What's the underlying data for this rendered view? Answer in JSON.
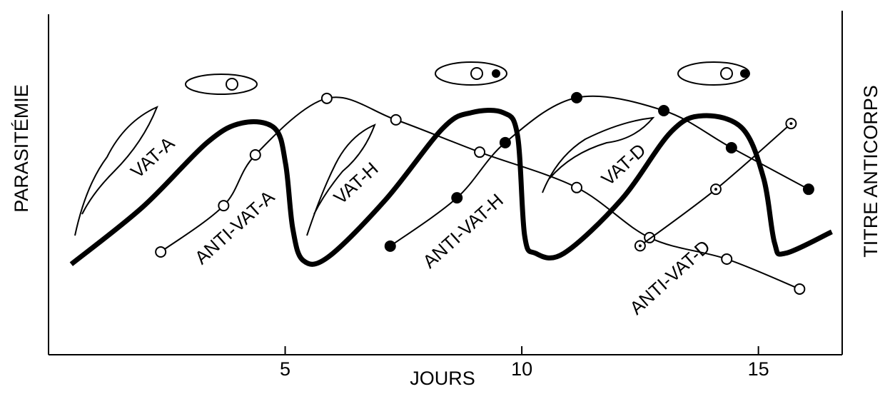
{
  "chart_data": {
    "type": "line",
    "x_label": "JOURS",
    "y_label": "PARASITÉMIE",
    "y2_label": "TITRE ANTICORPS",
    "xlim": [
      0,
      16.8
    ],
    "xticks": [
      5,
      10,
      15
    ],
    "ylim": [
      0,
      10
    ],
    "series": [
      {
        "color": "#000",
        "style": "thick",
        "x": [
          0.48,
          1.99,
          3.35,
          4.1,
          4.78,
          5.01,
          5.16,
          5.38,
          5.91,
          7.12,
          8.33,
          8.93,
          9.61,
          9.91,
          10.06,
          10.29,
          10.89,
          12.1,
          13.15,
          13.83,
          14.66,
          15.11,
          15.34,
          15.57,
          16.55
        ],
        "values": [
          2.66,
          4.34,
          6.23,
          6.81,
          6.65,
          5.6,
          3.71,
          2.77,
          2.87,
          4.55,
          6.65,
          7.11,
          7.11,
          6.44,
          3.5,
          2.98,
          2.98,
          4.55,
          6.54,
          7.02,
          6.65,
          5.18,
          3.29,
          2.98,
          3.61
        ]
      },
      {
        "name": "ANTI-VAT-A",
        "color": "#000",
        "style": "open",
        "x": [
          2.37,
          3.7,
          4.37,
          5.88,
          7.34,
          9.11,
          11.16,
          12.7,
          14.33,
          15.87
        ],
        "values": [
          3.02,
          4.38,
          5.87,
          7.53,
          6.9,
          5.95,
          4.91,
          3.44,
          2.81,
          1.93
        ]
      },
      {
        "name": "ANTI-VAT-H",
        "color": "#000",
        "style": "filled",
        "x": [
          7.22,
          8.63,
          9.65,
          11.16,
          13.0,
          14.43,
          16.06
        ],
        "values": [
          3.19,
          4.61,
          6.23,
          7.55,
          7.17,
          6.08,
          4.86
        ]
      },
      {
        "name": "ANTI-VAT-D",
        "color": "#000",
        "style": "dotted",
        "x": [
          12.5,
          14.1,
          15.69
        ],
        "values": [
          3.2,
          4.86,
          6.79
        ]
      }
    ],
    "annotations": [
      "VAT-A",
      "VAT-H",
      "VAT-D"
    ]
  }
}
